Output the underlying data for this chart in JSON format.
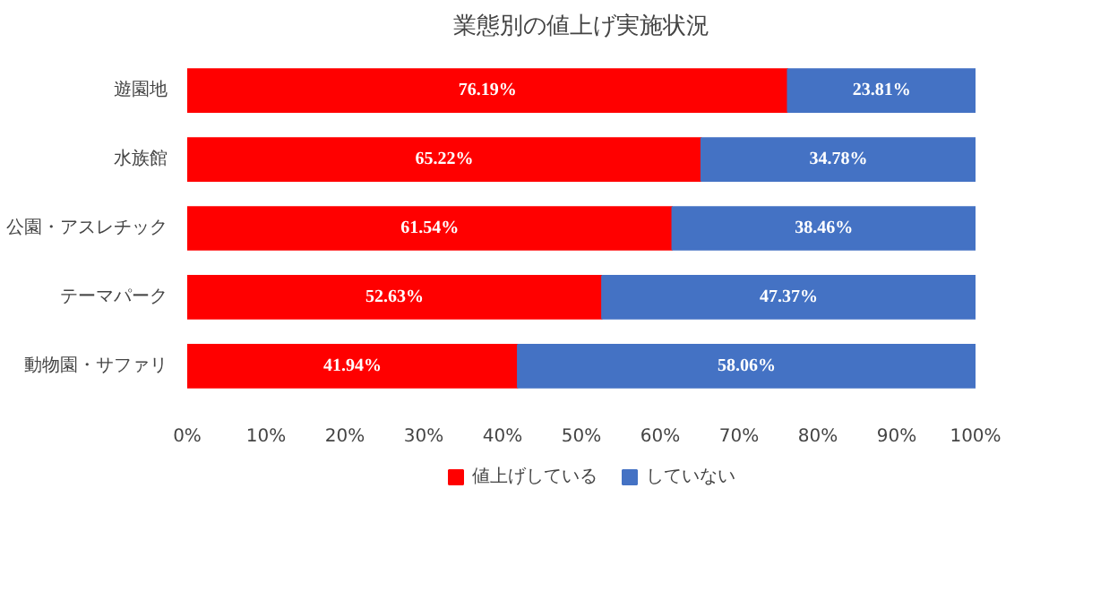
{
  "chart_data": {
    "type": "bar",
    "orientation": "horizontal",
    "stacked": true,
    "title": "業態別の値上げ実施状況",
    "categories": [
      "遊園地",
      "水族館",
      "公園・アスレチック",
      "テーマパーク",
      "動物園・サファリ"
    ],
    "series": [
      {
        "name": "値上げしている",
        "color": "#ff0000",
        "values": [
          76.19,
          65.22,
          61.54,
          52.63,
          41.94
        ],
        "value_labels": [
          "76.19%",
          "65.22%",
          "61.54%",
          "52.63%",
          "41.94%"
        ]
      },
      {
        "name": "していない",
        "color": "#4472c4",
        "values": [
          23.81,
          34.78,
          38.46,
          47.37,
          58.06
        ],
        "value_labels": [
          "23.81%",
          "34.78%",
          "38.46%",
          "47.37%",
          "58.06%"
        ]
      }
    ],
    "xlim": [
      0,
      100
    ],
    "xticks": [
      {
        "value": 0,
        "label": "0%"
      },
      {
        "value": 10,
        "label": "10%"
      },
      {
        "value": 20,
        "label": "20%"
      },
      {
        "value": 30,
        "label": "30%"
      },
      {
        "value": 40,
        "label": "40%"
      },
      {
        "value": 50,
        "label": "50%"
      },
      {
        "value": 60,
        "label": "60%"
      },
      {
        "value": 70,
        "label": "70%"
      },
      {
        "value": 80,
        "label": "80%"
      },
      {
        "value": 90,
        "label": "90%"
      },
      {
        "value": 100,
        "label": "100%"
      }
    ],
    "legend": "bottom",
    "grid": false
  }
}
